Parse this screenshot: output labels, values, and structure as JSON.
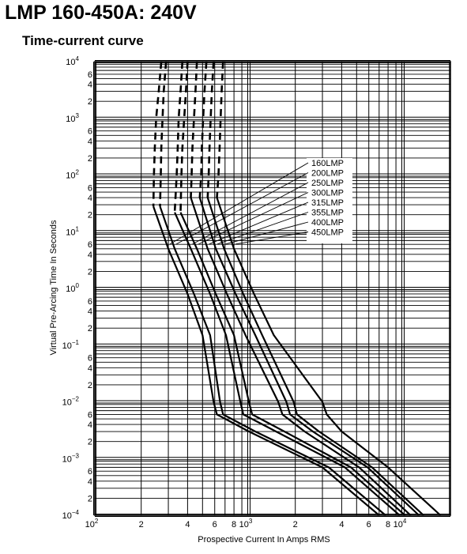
{
  "page": {
    "title": "LMP 160-450A: 240V",
    "subtitle": "Time-current curve"
  },
  "chart_data": {
    "type": "line",
    "title": "Time-current curve",
    "xlabel": "Prospective Current In Amps RMS",
    "ylabel": "Virtual Pre-Arcing Time In Seconds",
    "xscale": "log",
    "yscale": "log",
    "xlim": [
      100,
      20000
    ],
    "ylim": [
      0.0001,
      10000
    ],
    "grid": true,
    "x_ticks": [
      {
        "value": 100,
        "base": "10",
        "exp": "2"
      },
      {
        "value": 200,
        "label": "2"
      },
      {
        "value": 400,
        "label": "4"
      },
      {
        "value": 600,
        "label": "6"
      },
      {
        "value": 800,
        "label": "8"
      },
      {
        "value": 1000,
        "base": "10",
        "exp": "3"
      },
      {
        "value": 2000,
        "label": "2"
      },
      {
        "value": 4000,
        "label": "4"
      },
      {
        "value": 6000,
        "label": "6"
      },
      {
        "value": 8000,
        "label": "8"
      },
      {
        "value": 10000,
        "base": "10",
        "exp": "4"
      }
    ],
    "y_ticks": [
      {
        "value": 10000,
        "base": "10",
        "exp": "4"
      },
      {
        "value": 6000,
        "label": "6"
      },
      {
        "value": 4000,
        "label": "4"
      },
      {
        "value": 2000,
        "label": "2"
      },
      {
        "value": 1000,
        "base": "10",
        "exp": "3"
      },
      {
        "value": 600,
        "label": "6"
      },
      {
        "value": 400,
        "label": "4"
      },
      {
        "value": 200,
        "label": "2"
      },
      {
        "value": 100,
        "base": "10",
        "exp": "2"
      },
      {
        "value": 60,
        "label": "6"
      },
      {
        "value": 40,
        "label": "4"
      },
      {
        "value": 20,
        "label": "2"
      },
      {
        "value": 10,
        "base": "10",
        "exp": "1"
      },
      {
        "value": 6,
        "label": "6"
      },
      {
        "value": 4,
        "label": "4"
      },
      {
        "value": 2,
        "label": "2"
      },
      {
        "value": 1,
        "base": "10",
        "exp": "0"
      },
      {
        "value": 0.6,
        "label": "6"
      },
      {
        "value": 0.4,
        "label": "4"
      },
      {
        "value": 0.2,
        "label": "2"
      },
      {
        "value": 0.1,
        "base": "10",
        "exp": "−1"
      },
      {
        "value": 0.06,
        "label": "6"
      },
      {
        "value": 0.04,
        "label": "4"
      },
      {
        "value": 0.02,
        "label": "2"
      },
      {
        "value": 0.01,
        "base": "10",
        "exp": "−2"
      },
      {
        "value": 0.006,
        "label": "6"
      },
      {
        "value": 0.004,
        "label": "4"
      },
      {
        "value": 0.002,
        "label": "2"
      },
      {
        "value": 0.001,
        "base": "10",
        "exp": "−3"
      },
      {
        "value": 0.0006,
        "label": "6"
      },
      {
        "value": 0.0004,
        "label": "4"
      },
      {
        "value": 0.0002,
        "label": "2"
      },
      {
        "value": 0.0001,
        "base": "10",
        "exp": "−4"
      }
    ],
    "series": [
      {
        "name": "160LMP",
        "dashed": [
          [
            270,
            10000
          ],
          [
            260,
            3000
          ],
          [
            250,
            1000
          ],
          [
            245,
            300
          ],
          [
            242,
            100
          ],
          [
            240,
            28
          ]
        ],
        "solid": [
          [
            240,
            28
          ],
          [
            300,
            5
          ],
          [
            400,
            0.8
          ],
          [
            500,
            0.15
          ],
          [
            590,
            0.01
          ],
          [
            620,
            0.006
          ],
          [
            1000,
            0.003
          ],
          [
            3000,
            0.0007
          ],
          [
            7000,
            0.0001
          ]
        ]
      },
      {
        "name": "200LMP",
        "dashed": [
          [
            290,
            10000
          ],
          [
            280,
            3000
          ],
          [
            275,
            1000
          ],
          [
            270,
            300
          ],
          [
            268,
            100
          ],
          [
            265,
            28
          ]
        ],
        "solid": [
          [
            265,
            28
          ],
          [
            330,
            5
          ],
          [
            440,
            0.8
          ],
          [
            560,
            0.15
          ],
          [
            650,
            0.01
          ],
          [
            680,
            0.006
          ],
          [
            1100,
            0.003
          ],
          [
            3300,
            0.0007
          ],
          [
            7700,
            0.0001
          ]
        ]
      },
      {
        "name": "250LMP",
        "dashed": [
          [
            370,
            10000
          ],
          [
            360,
            3000
          ],
          [
            350,
            1000
          ],
          [
            345,
            300
          ],
          [
            340,
            100
          ],
          [
            330,
            22
          ]
        ],
        "solid": [
          [
            330,
            22
          ],
          [
            420,
            5
          ],
          [
            560,
            0.8
          ],
          [
            710,
            0.15
          ],
          [
            880,
            0.01
          ],
          [
            920,
            0.006
          ],
          [
            1500,
            0.003
          ],
          [
            4200,
            0.0007
          ],
          [
            9500,
            0.0001
          ]
        ]
      },
      {
        "name": "300LMP",
        "dashed": [
          [
            400,
            10000
          ],
          [
            390,
            3000
          ],
          [
            380,
            1000
          ],
          [
            370,
            300
          ],
          [
            365,
            100
          ],
          [
            360,
            22
          ]
        ],
        "solid": [
          [
            360,
            22
          ],
          [
            460,
            5
          ],
          [
            610,
            0.8
          ],
          [
            800,
            0.15
          ],
          [
            1000,
            0.01
          ],
          [
            1050,
            0.006
          ],
          [
            1700,
            0.003
          ],
          [
            4600,
            0.0007
          ],
          [
            10300,
            0.0001
          ]
        ]
      },
      {
        "name": "315LMP",
        "dashed": [
          [
            460,
            10000
          ],
          [
            450,
            3000
          ],
          [
            440,
            1000
          ],
          [
            430,
            300
          ],
          [
            425,
            100
          ],
          [
            420,
            40
          ]
        ],
        "solid": [
          [
            420,
            40
          ],
          [
            540,
            5
          ],
          [
            720,
            0.8
          ],
          [
            950,
            0.15
          ],
          [
            1550,
            0.01
          ],
          [
            1650,
            0.006
          ],
          [
            2300,
            0.003
          ],
          [
            5200,
            0.0007
          ],
          [
            11200,
            0.0001
          ]
        ]
      },
      {
        "name": "355LMP",
        "dashed": [
          [
            530,
            10000
          ],
          [
            515,
            3000
          ],
          [
            505,
            1000
          ],
          [
            495,
            300
          ],
          [
            490,
            100
          ],
          [
            480,
            40
          ]
        ],
        "solid": [
          [
            480,
            40
          ],
          [
            610,
            5
          ],
          [
            820,
            0.8
          ],
          [
            1100,
            0.15
          ],
          [
            1750,
            0.01
          ],
          [
            1850,
            0.006
          ],
          [
            2600,
            0.003
          ],
          [
            5900,
            0.0007
          ],
          [
            12700,
            0.0001
          ]
        ]
      },
      {
        "name": "400LMP",
        "dashed": [
          [
            590,
            10000
          ],
          [
            575,
            3000
          ],
          [
            565,
            1000
          ],
          [
            555,
            300
          ],
          [
            548,
            100
          ],
          [
            540,
            40
          ]
        ],
        "solid": [
          [
            540,
            40
          ],
          [
            690,
            5
          ],
          [
            920,
            0.8
          ],
          [
            1220,
            0.15
          ],
          [
            1950,
            0.01
          ],
          [
            2050,
            0.006
          ],
          [
            2850,
            0.003
          ],
          [
            6300,
            0.0007
          ],
          [
            13600,
            0.0001
          ]
        ]
      },
      {
        "name": "450LMP",
        "dashed": [
          [
            680,
            10000
          ],
          [
            665,
            3000
          ],
          [
            655,
            1000
          ],
          [
            645,
            300
          ],
          [
            635,
            100
          ],
          [
            620,
            40
          ]
        ],
        "solid": [
          [
            620,
            40
          ],
          [
            800,
            5
          ],
          [
            1080,
            0.8
          ],
          [
            1450,
            0.15
          ],
          [
            3000,
            0.01
          ],
          [
            3200,
            0.006
          ],
          [
            4000,
            0.003
          ],
          [
            8000,
            0.0007
          ],
          [
            17500,
            0.0001
          ]
        ]
      }
    ],
    "legend_entries": [
      {
        "text": "160LMP",
        "target": [
          300,
          5
        ]
      },
      {
        "text": "200LMP",
        "target": [
          330,
          5
        ]
      },
      {
        "text": "250LMP",
        "target": [
          420,
          5
        ]
      },
      {
        "text": "300LMP",
        "target": [
          460,
          5
        ]
      },
      {
        "text": "315LMP",
        "target": [
          540,
          5
        ]
      },
      {
        "text": "355LMP",
        "target": [
          610,
          5
        ]
      },
      {
        "text": "400LMP",
        "target": [
          690,
          5
        ]
      },
      {
        "text": "450LMP",
        "target": [
          800,
          5
        ]
      }
    ]
  }
}
